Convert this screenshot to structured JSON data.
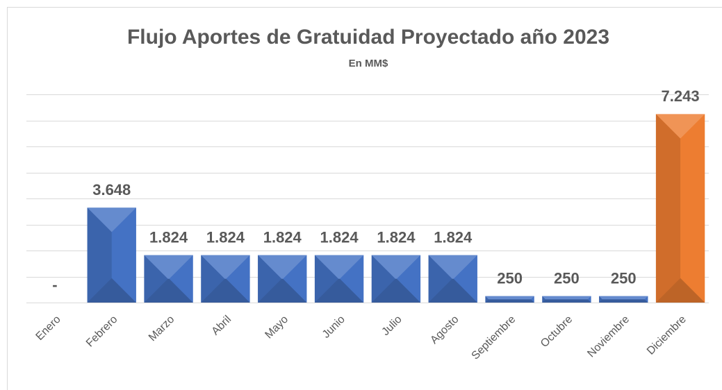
{
  "chart_data": {
    "type": "bar",
    "title": "Flujo Aportes de Gratuidad Proyectado año 2023",
    "subtitle": "En MM$",
    "categories": [
      "Enero",
      "Febrero",
      "Marzo",
      "Abril",
      "Mayo",
      "Junio",
      "Julio",
      "Agosto",
      "Septiembre",
      "Octubre",
      "Noviembre",
      "Diciembre"
    ],
    "values": [
      0,
      3648,
      1824,
      1824,
      1824,
      1824,
      1824,
      1824,
      250,
      250,
      250,
      7243
    ],
    "value_labels": [
      "-",
      "3.648",
      "1.824",
      "1.824",
      "1.824",
      "1.824",
      "1.824",
      "1.824",
      "250",
      "250",
      "250",
      "7.243"
    ],
    "colors": [
      "#4472c4",
      "#4472c4",
      "#4472c4",
      "#4472c4",
      "#4472c4",
      "#4472c4",
      "#4472c4",
      "#4472c4",
      "#4472c4",
      "#4472c4",
      "#4472c4",
      "#ed7d31"
    ],
    "ylim": [
      0,
      8000
    ],
    "yticks": [
      0,
      1000,
      2000,
      3000,
      4000,
      5000,
      6000,
      7000,
      8000
    ],
    "grid": true
  }
}
